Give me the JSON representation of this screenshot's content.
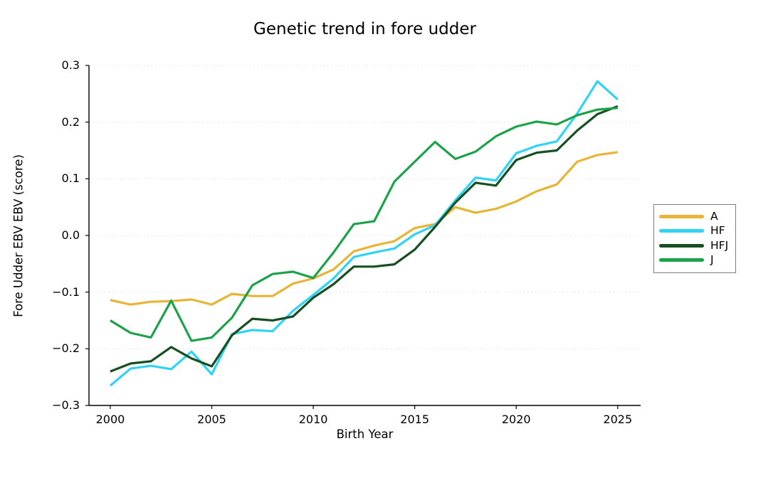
{
  "figure": {
    "title": "Genetic trend in fore udder"
  },
  "chart_data": {
    "type": "line",
    "title": "Genetic trend in fore udder",
    "xlabel": "Birth Year",
    "ylabel": "Fore Udder EBV EBV (score)",
    "x": [
      2000,
      2001,
      2002,
      2003,
      2004,
      2005,
      2006,
      2007,
      2008,
      2009,
      2010,
      2011,
      2012,
      2013,
      2014,
      2015,
      2016,
      2017,
      2018,
      2019,
      2020,
      2021,
      2022,
      2023,
      2024,
      2025
    ],
    "xticks": [
      2000,
      2005,
      2010,
      2015,
      2020,
      2025
    ],
    "yticks": [
      0.3,
      0.2,
      0.1,
      0.0,
      -0.1,
      -0.2,
      -0.3
    ],
    "xlim": [
      1998.95,
      2026.13
    ],
    "ylim": [
      -0.3,
      0.3
    ],
    "grid": "horizontal dotted light-gray",
    "legend_position": "right-outside-box",
    "series": [
      {
        "name": "A",
        "color": "#E8B435",
        "values": [
          -0.114,
          -0.122,
          -0.117,
          -0.116,
          -0.113,
          -0.122,
          -0.103,
          -0.107,
          -0.107,
          -0.085,
          -0.076,
          -0.06,
          -0.028,
          -0.018,
          -0.01,
          0.013,
          0.02,
          0.05,
          0.04,
          0.047,
          0.06,
          0.078,
          0.09,
          0.13,
          0.142,
          0.147
        ]
      },
      {
        "name": "HF",
        "color": "#2FD3F5",
        "values": [
          -0.265,
          -0.235,
          -0.23,
          -0.236,
          -0.205,
          -0.245,
          -0.174,
          -0.167,
          -0.169,
          -0.133,
          -0.105,
          -0.076,
          -0.038,
          -0.03,
          -0.023,
          0.002,
          0.018,
          0.062,
          0.102,
          0.097,
          0.145,
          0.158,
          0.166,
          0.215,
          0.272,
          0.24
        ]
      },
      {
        "name": "HFJ",
        "color": "#174F20",
        "values": [
          -0.24,
          -0.226,
          -0.222,
          -0.197,
          -0.217,
          -0.231,
          -0.176,
          -0.147,
          -0.15,
          -0.143,
          -0.11,
          -0.086,
          -0.055,
          -0.055,
          -0.051,
          -0.025,
          0.015,
          0.058,
          0.093,
          0.088,
          0.133,
          0.146,
          0.15,
          0.185,
          0.214,
          0.228
        ]
      },
      {
        "name": "J",
        "color": "#1BA24A",
        "values": [
          -0.15,
          -0.172,
          -0.18,
          -0.115,
          -0.186,
          -0.18,
          -0.145,
          -0.088,
          -0.068,
          -0.064,
          -0.075,
          -0.03,
          0.02,
          0.025,
          0.095,
          0.13,
          0.165,
          0.135,
          0.148,
          0.175,
          0.192,
          0.201,
          0.196,
          0.212,
          0.222,
          0.225
        ]
      }
    ]
  }
}
